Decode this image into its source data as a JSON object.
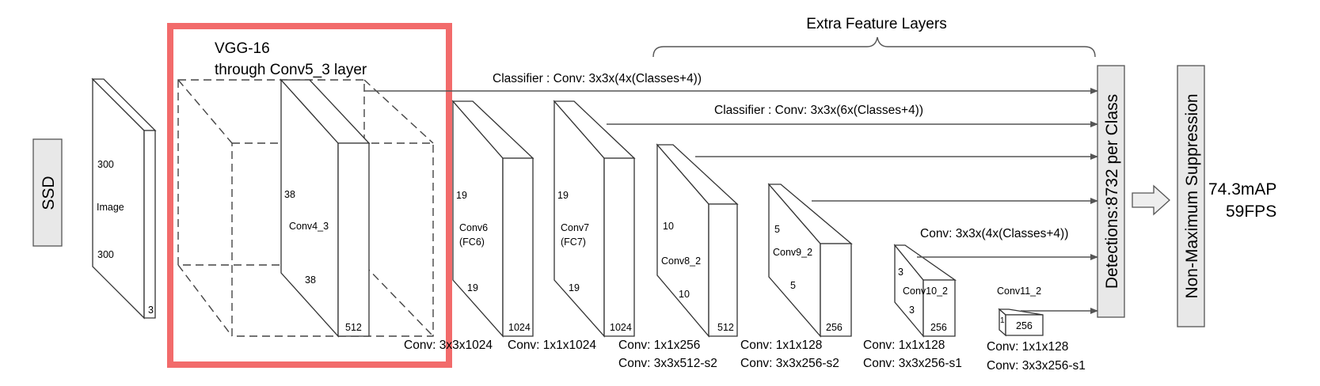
{
  "diagram": {
    "ssd_label": "SSD",
    "vgg_title_line1": "VGG-16",
    "vgg_title_line2": "through Conv5_3 layer",
    "extra_layers_title": "Extra Feature Layers",
    "classifier_1": "Classifier : Conv: 3x3x(4x(Classes+4))",
    "classifier_2": "Classifier : Conv: 3x3x(6x(Classes+4))",
    "classifier_3": "Conv: 3x3x(4x(Classes+4))",
    "detections_label": "Detections:8732  per Class",
    "nms_label": "Non-Maximum Suppression",
    "result_map": "74.3mAP",
    "result_fps": "59FPS",
    "highlight_color": "#f26b6b",
    "image_block": {
      "height": "300",
      "name": "Image",
      "width": "300",
      "depth": "3"
    },
    "conv4_3": {
      "height": "38",
      "name": "Conv4_3",
      "width": "38",
      "depth": "512"
    },
    "conv6": {
      "height": "19",
      "name_line1": "Conv6",
      "name_line2": "(FC6)",
      "width": "19",
      "depth": "1024"
    },
    "conv7": {
      "height": "19",
      "name_line1": "Conv7",
      "name_line2": "(FC7)",
      "width": "19",
      "depth": "1024"
    },
    "conv8_2": {
      "height": "10",
      "name": "Conv8_2",
      "width": "10",
      "depth": "512"
    },
    "conv9_2": {
      "height": "5",
      "name": "Conv9_2",
      "width": "5",
      "depth": "256"
    },
    "conv10_2": {
      "height": "3",
      "name": "Conv10_2",
      "width": "3",
      "depth": "256"
    },
    "conv11_2": {
      "height": "1",
      "name": "Conv11_2",
      "depth": "256"
    },
    "op_conv6": "Conv: 3x3x1024",
    "op_conv7": "Conv: 1x1x1024",
    "op_conv8_line1": "Conv:  1x1x256",
    "op_conv8_line2": "Conv:  3x3x512-s2",
    "op_conv9_line1": "Conv: 1x1x128",
    "op_conv9_line2": "Conv: 3x3x256-s2",
    "op_conv10_line1": "Conv: 1x1x128",
    "op_conv10_line2": "Conv: 3x3x256-s1",
    "op_conv11_line1": "Conv: 1x1x128",
    "op_conv11_line2": "Conv: 3x3x256-s1"
  }
}
